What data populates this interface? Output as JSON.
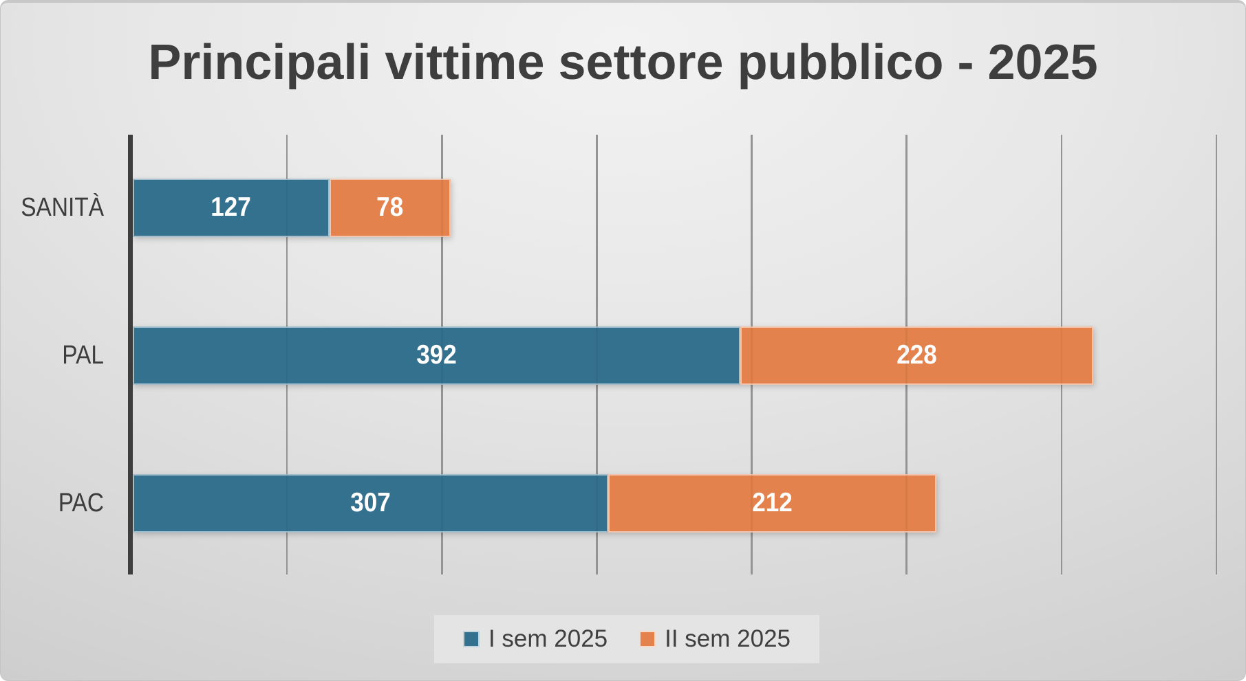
{
  "chart_data": {
    "type": "bar",
    "orientation": "horizontal",
    "stacked": true,
    "title": "Principali vittime settore pubblico - 2025",
    "categories": [
      "SANITÀ",
      "PAL",
      "PAC"
    ],
    "series": [
      {
        "name": "I sem 2025",
        "color": "#34718F",
        "values": [
          127,
          392,
          307
        ]
      },
      {
        "name": "II sem 2025",
        "color": "#E3824C",
        "values": [
          78,
          228,
          212
        ]
      }
    ],
    "xlim": [
      0,
      700
    ],
    "x_step": 100,
    "grid": true,
    "legend_position": "bottom",
    "value_label_style": "white bold, centered inside segments",
    "background": "light gray radial gradient"
  }
}
